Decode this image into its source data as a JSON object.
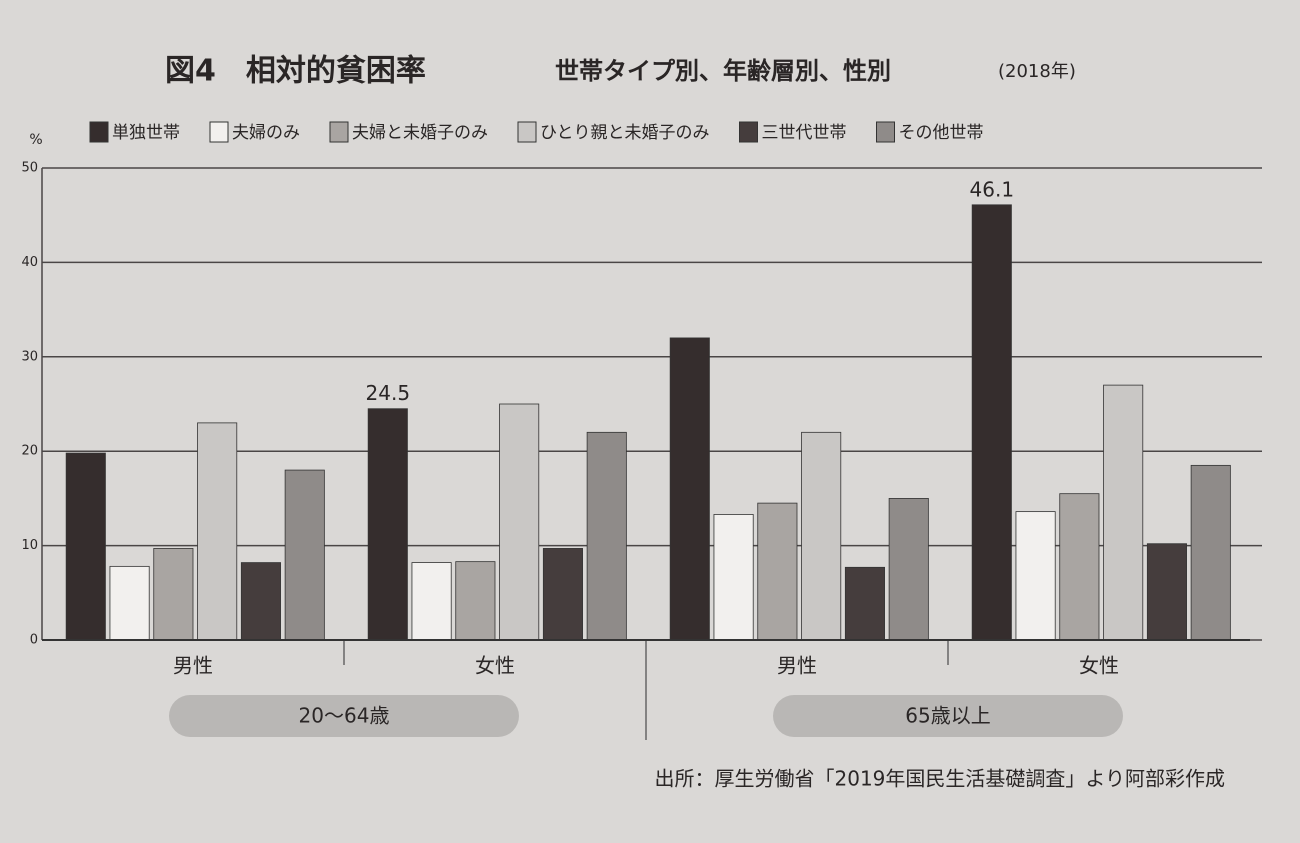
{
  "chart_data": {
    "type": "bar",
    "title": "図4　相対的貧困率",
    "subtitle": "世帯タイプ別、年齢層別、性別",
    "year_note": "(2018年)",
    "y_unit": "%",
    "categories": [
      "男性",
      "女性",
      "男性",
      "女性"
    ],
    "category_groups": [
      "20〜64歳",
      "65歳以上"
    ],
    "series": [
      {
        "name": "単独世帯",
        "color": "#352d2d",
        "values": [
          19.8,
          24.5,
          32,
          46.1
        ],
        "value_labels": [
          null,
          "24.5",
          null,
          "46.1"
        ]
      },
      {
        "name": "夫婦のみ",
        "color": "#f2f0ee",
        "values": [
          7.8,
          8.2,
          13.3,
          13.6
        ]
      },
      {
        "name": "夫婦と未婚子のみ",
        "color": "#a9a5a2",
        "values": [
          9.7,
          8.3,
          14.5,
          15.5
        ]
      },
      {
        "name": "ひとり親と未婚子のみ",
        "color": "#c9c7c5",
        "values": [
          23,
          25,
          22,
          27
        ]
      },
      {
        "name": "三世代世帯",
        "color": "#453d3d",
        "values": [
          8.2,
          9.7,
          7.7,
          10.2
        ]
      },
      {
        "name": "その他世帯",
        "color": "#8f8b89",
        "values": [
          18,
          22,
          15,
          18.5
        ]
      }
    ],
    "ylim": [
      0,
      50
    ],
    "yticks": [
      0,
      10,
      20,
      30,
      40,
      50
    ],
    "grid": true,
    "source": "出所：厚生労働省「2019年国民生活基礎調査」より阿部彩作成"
  }
}
